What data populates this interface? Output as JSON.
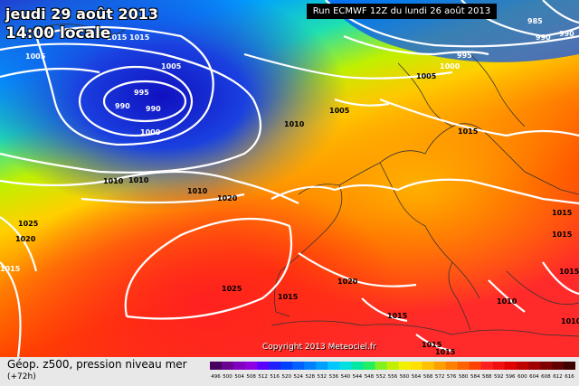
{
  "header": {
    "date": "jeudi 29 août 2013",
    "local_time": "14:00 locale",
    "run": "Run ECMWF 12Z du lundi 26 août 2013"
  },
  "footer": {
    "legend_title": "Géop. z500, pression niveau mer",
    "legend_sub": "(+72h)",
    "copyright": "Copyright 2013 Meteociel.fr"
  },
  "scale": {
    "labels": [
      "496",
      "500",
      "504",
      "508",
      "512",
      "516",
      "520",
      "524",
      "528",
      "532",
      "536",
      "540",
      "544",
      "548",
      "552",
      "556",
      "560",
      "564",
      "568",
      "572",
      "576",
      "580",
      "584",
      "588",
      "592",
      "596",
      "600",
      "604",
      "608",
      "612",
      "616"
    ],
    "colors": [
      "#4a0060",
      "#6a0090",
      "#7f00c0",
      "#8f00e0",
      "#5a00ff",
      "#2020ff",
      "#0040ff",
      "#0060ff",
      "#0080ff",
      "#00a0ff",
      "#00c8ff",
      "#00e0e0",
      "#00e8a0",
      "#20f060",
      "#80f020",
      "#c0f000",
      "#f0f000",
      "#ffe000",
      "#ffc000",
      "#ffa000",
      "#ff8000",
      "#ff6000",
      "#ff4000",
      "#ff2020",
      "#f01010",
      "#e00000",
      "#c00000",
      "#a00000",
      "#800000",
      "#600000",
      "#400000"
    ]
  },
  "isobars": [
    {
      "v": "1015"
    },
    {
      "v": "1015"
    },
    {
      "v": "1005"
    },
    {
      "v": "1005"
    },
    {
      "v": "995"
    },
    {
      "v": "990"
    },
    {
      "v": "990"
    },
    {
      "v": "1000"
    },
    {
      "v": "1010"
    },
    {
      "v": "1010"
    },
    {
      "v": "1010"
    },
    {
      "v": "1020"
    },
    {
      "v": "1025"
    },
    {
      "v": "1020"
    },
    {
      "v": "1025"
    },
    {
      "v": "1015"
    },
    {
      "v": "1020"
    },
    {
      "v": "1015"
    },
    {
      "v": "1015"
    },
    {
      "v": "1010"
    },
    {
      "v": "1015"
    },
    {
      "v": "1010"
    },
    {
      "v": "1005"
    },
    {
      "v": "1005"
    },
    {
      "v": "1015"
    },
    {
      "v": "1000"
    },
    {
      "v": "995"
    },
    {
      "v": "990"
    },
    {
      "v": "985"
    },
    {
      "v": "990"
    },
    {
      "v": "1010"
    },
    {
      "v": "1015"
    },
    {
      "v": "1015"
    },
    {
      "v": "1015"
    },
    {
      "v": "1015"
    }
  ]
}
